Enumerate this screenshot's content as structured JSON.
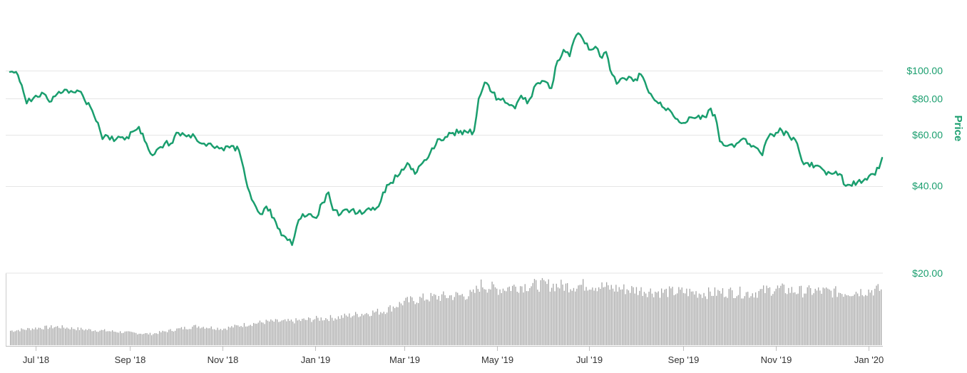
{
  "chart_data": {
    "type": "line",
    "ylabel": "Price",
    "y_scale": "log",
    "ylim": [
      20,
      140
    ],
    "y_ticks": [
      {
        "value": 100,
        "label": "$100.00"
      },
      {
        "value": 80,
        "label": "$80.00"
      },
      {
        "value": 60,
        "label": "$60.00"
      },
      {
        "value": 40,
        "label": "$40.00"
      },
      {
        "value": 20,
        "label": "$20.00"
      }
    ],
    "x_ticks": [
      {
        "date": "2018-07-01",
        "label": "Jul '18"
      },
      {
        "date": "2018-09-01",
        "label": "Sep '18"
      },
      {
        "date": "2018-11-01",
        "label": "Nov '18"
      },
      {
        "date": "2019-01-01",
        "label": "Jan '19"
      },
      {
        "date": "2019-03-01",
        "label": "Mar '19"
      },
      {
        "date": "2019-05-01",
        "label": "May '19"
      },
      {
        "date": "2019-07-01",
        "label": "Jul '19"
      },
      {
        "date": "2019-09-01",
        "label": "Sep '19"
      },
      {
        "date": "2019-11-01",
        "label": "Nov '19"
      },
      {
        "date": "2020-01-01",
        "label": "Jan '20"
      }
    ],
    "grid": true,
    "colors": {
      "price_line": "#1a9e6e",
      "volume_bars": "#a6a6a6",
      "grid": "#e6e6e6"
    },
    "series": [
      {
        "name": "Price",
        "points": [
          [
            "2018-06-14",
            99
          ],
          [
            "2018-06-18",
            99
          ],
          [
            "2018-06-23",
            84
          ],
          [
            "2018-06-25",
            77
          ],
          [
            "2018-07-01",
            82
          ],
          [
            "2018-07-05",
            84
          ],
          [
            "2018-07-10",
            78
          ],
          [
            "2018-07-15",
            83
          ],
          [
            "2018-07-20",
            86
          ],
          [
            "2018-07-27",
            84
          ],
          [
            "2018-08-01",
            82
          ],
          [
            "2018-08-06",
            75
          ],
          [
            "2018-08-11",
            66
          ],
          [
            "2018-08-14",
            58
          ],
          [
            "2018-08-16",
            60
          ],
          [
            "2018-08-23",
            58
          ],
          [
            "2018-08-30",
            59
          ],
          [
            "2018-09-04",
            62
          ],
          [
            "2018-09-07",
            64
          ],
          [
            "2018-09-12",
            56
          ],
          [
            "2018-09-16",
            51
          ],
          [
            "2018-09-20",
            54
          ],
          [
            "2018-09-24",
            56
          ],
          [
            "2018-09-28",
            56
          ],
          [
            "2018-10-03",
            61
          ],
          [
            "2018-10-07",
            60
          ],
          [
            "2018-10-14",
            59
          ],
          [
            "2018-10-20",
            56
          ],
          [
            "2018-10-27",
            54
          ],
          [
            "2018-11-02",
            53
          ],
          [
            "2018-11-07",
            55
          ],
          [
            "2018-11-12",
            53
          ],
          [
            "2018-11-15",
            46
          ],
          [
            "2018-11-19",
            38
          ],
          [
            "2018-11-23",
            34
          ],
          [
            "2018-11-26",
            32
          ],
          [
            "2018-11-30",
            34
          ],
          [
            "2018-12-05",
            31
          ],
          [
            "2018-12-10",
            27
          ],
          [
            "2018-12-14",
            26
          ],
          [
            "2018-12-17",
            25
          ],
          [
            "2018-12-20",
            29
          ],
          [
            "2018-12-24",
            32
          ],
          [
            "2018-12-28",
            32
          ],
          [
            "2019-01-02",
            31
          ],
          [
            "2019-01-06",
            35
          ],
          [
            "2019-01-10",
            38
          ],
          [
            "2019-01-13",
            33
          ],
          [
            "2019-01-18",
            32
          ],
          [
            "2019-01-25",
            33
          ],
          [
            "2019-02-01",
            32
          ],
          [
            "2019-02-07",
            33
          ],
          [
            "2019-02-12",
            34
          ],
          [
            "2019-02-15",
            38
          ],
          [
            "2019-02-20",
            41
          ],
          [
            "2019-02-26",
            44
          ],
          [
            "2019-03-03",
            48
          ],
          [
            "2019-03-08",
            44
          ],
          [
            "2019-03-13",
            48
          ],
          [
            "2019-03-18",
            52
          ],
          [
            "2019-03-23",
            58
          ],
          [
            "2019-03-28",
            59
          ],
          [
            "2019-04-02",
            61
          ],
          [
            "2019-04-07",
            62
          ],
          [
            "2019-04-12",
            61
          ],
          [
            "2019-04-16",
            62
          ],
          [
            "2019-04-19",
            80
          ],
          [
            "2019-04-23",
            91
          ],
          [
            "2019-04-28",
            84
          ],
          [
            "2019-05-02",
            80
          ],
          [
            "2019-05-08",
            77
          ],
          [
            "2019-05-13",
            74
          ],
          [
            "2019-05-17",
            82
          ],
          [
            "2019-05-21",
            77
          ],
          [
            "2019-05-27",
            90
          ],
          [
            "2019-06-01",
            92
          ],
          [
            "2019-06-06",
            87
          ],
          [
            "2019-06-10",
            108
          ],
          [
            "2019-06-14",
            118
          ],
          [
            "2019-06-18",
            112
          ],
          [
            "2019-06-21",
            128
          ],
          [
            "2019-06-25",
            133
          ],
          [
            "2019-06-28",
            124
          ],
          [
            "2019-07-02",
            118
          ],
          [
            "2019-07-05",
            121
          ],
          [
            "2019-07-08",
            112
          ],
          [
            "2019-07-12",
            116
          ],
          [
            "2019-07-16",
            97
          ],
          [
            "2019-07-19",
            90
          ],
          [
            "2019-07-24",
            94
          ],
          [
            "2019-07-30",
            92
          ],
          [
            "2019-08-04",
            97
          ],
          [
            "2019-08-08",
            87
          ],
          [
            "2019-08-13",
            79
          ],
          [
            "2019-08-18",
            75
          ],
          [
            "2019-08-23",
            73
          ],
          [
            "2019-08-28",
            68
          ],
          [
            "2019-09-01",
            66
          ],
          [
            "2019-09-06",
            69
          ],
          [
            "2019-09-11",
            70
          ],
          [
            "2019-09-16",
            69
          ],
          [
            "2019-09-19",
            74
          ],
          [
            "2019-09-23",
            66
          ],
          [
            "2019-09-25",
            57
          ],
          [
            "2019-09-30",
            55
          ],
          [
            "2019-10-06",
            56
          ],
          [
            "2019-10-12",
            58
          ],
          [
            "2019-10-17",
            55
          ],
          [
            "2019-10-23",
            51
          ],
          [
            "2019-10-27",
            59
          ],
          [
            "2019-11-01",
            61
          ],
          [
            "2019-11-05",
            62
          ],
          [
            "2019-11-10",
            59
          ],
          [
            "2019-11-15",
            56
          ],
          [
            "2019-11-18",
            49
          ],
          [
            "2019-11-22",
            48
          ],
          [
            "2019-11-27",
            47
          ],
          [
            "2019-12-03",
            45
          ],
          [
            "2019-12-08",
            44
          ],
          [
            "2019-12-13",
            44
          ],
          [
            "2019-12-17",
            40
          ],
          [
            "2019-12-21",
            40
          ],
          [
            "2019-12-26",
            42
          ],
          [
            "2019-12-31",
            42
          ],
          [
            "2020-01-04",
            44
          ],
          [
            "2020-01-08",
            46
          ],
          [
            "2020-01-10",
            50
          ]
        ]
      },
      {
        "name": "Volume",
        "points": [
          [
            "2018-06-15",
            22
          ],
          [
            "2018-07-01",
            26
          ],
          [
            "2018-07-15",
            28
          ],
          [
            "2018-08-01",
            24
          ],
          [
            "2018-08-15",
            22
          ],
          [
            "2018-09-01",
            19
          ],
          [
            "2018-09-15",
            17
          ],
          [
            "2018-10-01",
            24
          ],
          [
            "2018-10-15",
            29
          ],
          [
            "2018-11-01",
            25
          ],
          [
            "2018-11-15",
            31
          ],
          [
            "2018-12-01",
            36
          ],
          [
            "2018-12-15",
            36
          ],
          [
            "2019-01-01",
            40
          ],
          [
            "2019-01-15",
            42
          ],
          [
            "2019-02-01",
            48
          ],
          [
            "2019-02-15",
            52
          ],
          [
            "2019-03-01",
            66
          ],
          [
            "2019-03-15",
            72
          ],
          [
            "2019-04-01",
            75
          ],
          [
            "2019-04-15",
            77
          ],
          [
            "2019-04-20",
            92
          ],
          [
            "2019-05-01",
            85
          ],
          [
            "2019-05-15",
            90
          ],
          [
            "2019-06-01",
            92
          ],
          [
            "2019-06-15",
            90
          ],
          [
            "2019-07-01",
            92
          ],
          [
            "2019-07-15",
            87
          ],
          [
            "2019-08-01",
            84
          ],
          [
            "2019-08-15",
            81
          ],
          [
            "2019-09-01",
            81
          ],
          [
            "2019-09-15",
            79
          ],
          [
            "2019-10-01",
            81
          ],
          [
            "2019-10-15",
            79
          ],
          [
            "2019-11-01",
            86
          ],
          [
            "2019-11-15",
            82
          ],
          [
            "2019-12-01",
            82
          ],
          [
            "2019-12-15",
            80
          ],
          [
            "2020-01-01",
            83
          ],
          [
            "2020-01-10",
            85
          ]
        ]
      }
    ]
  }
}
